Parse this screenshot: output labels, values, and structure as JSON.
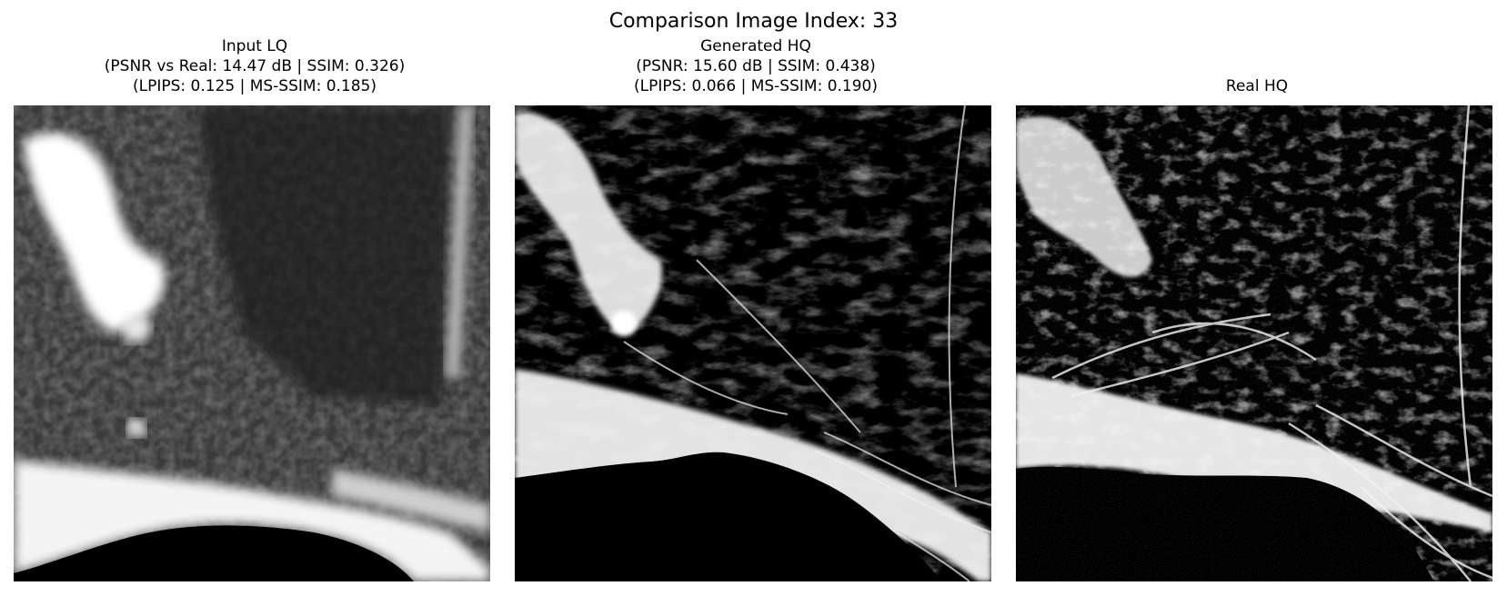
{
  "figure": {
    "title": "Comparison Image Index: 33"
  },
  "panels": [
    {
      "lines": [
        "Input LQ",
        "(PSNR vs Real: 14.47 dB | SSIM: 0.326)",
        "(LPIPS: 0.125 | MS-SSIM: 0.185)"
      ]
    },
    {
      "lines": [
        "Generated HQ",
        "(PSNR: 15.60 dB | SSIM: 0.438)",
        "(LPIPS: 0.066 | MS-SSIM: 0.190)"
      ]
    },
    {
      "lines": [
        "",
        "",
        "Real HQ"
      ]
    }
  ]
}
